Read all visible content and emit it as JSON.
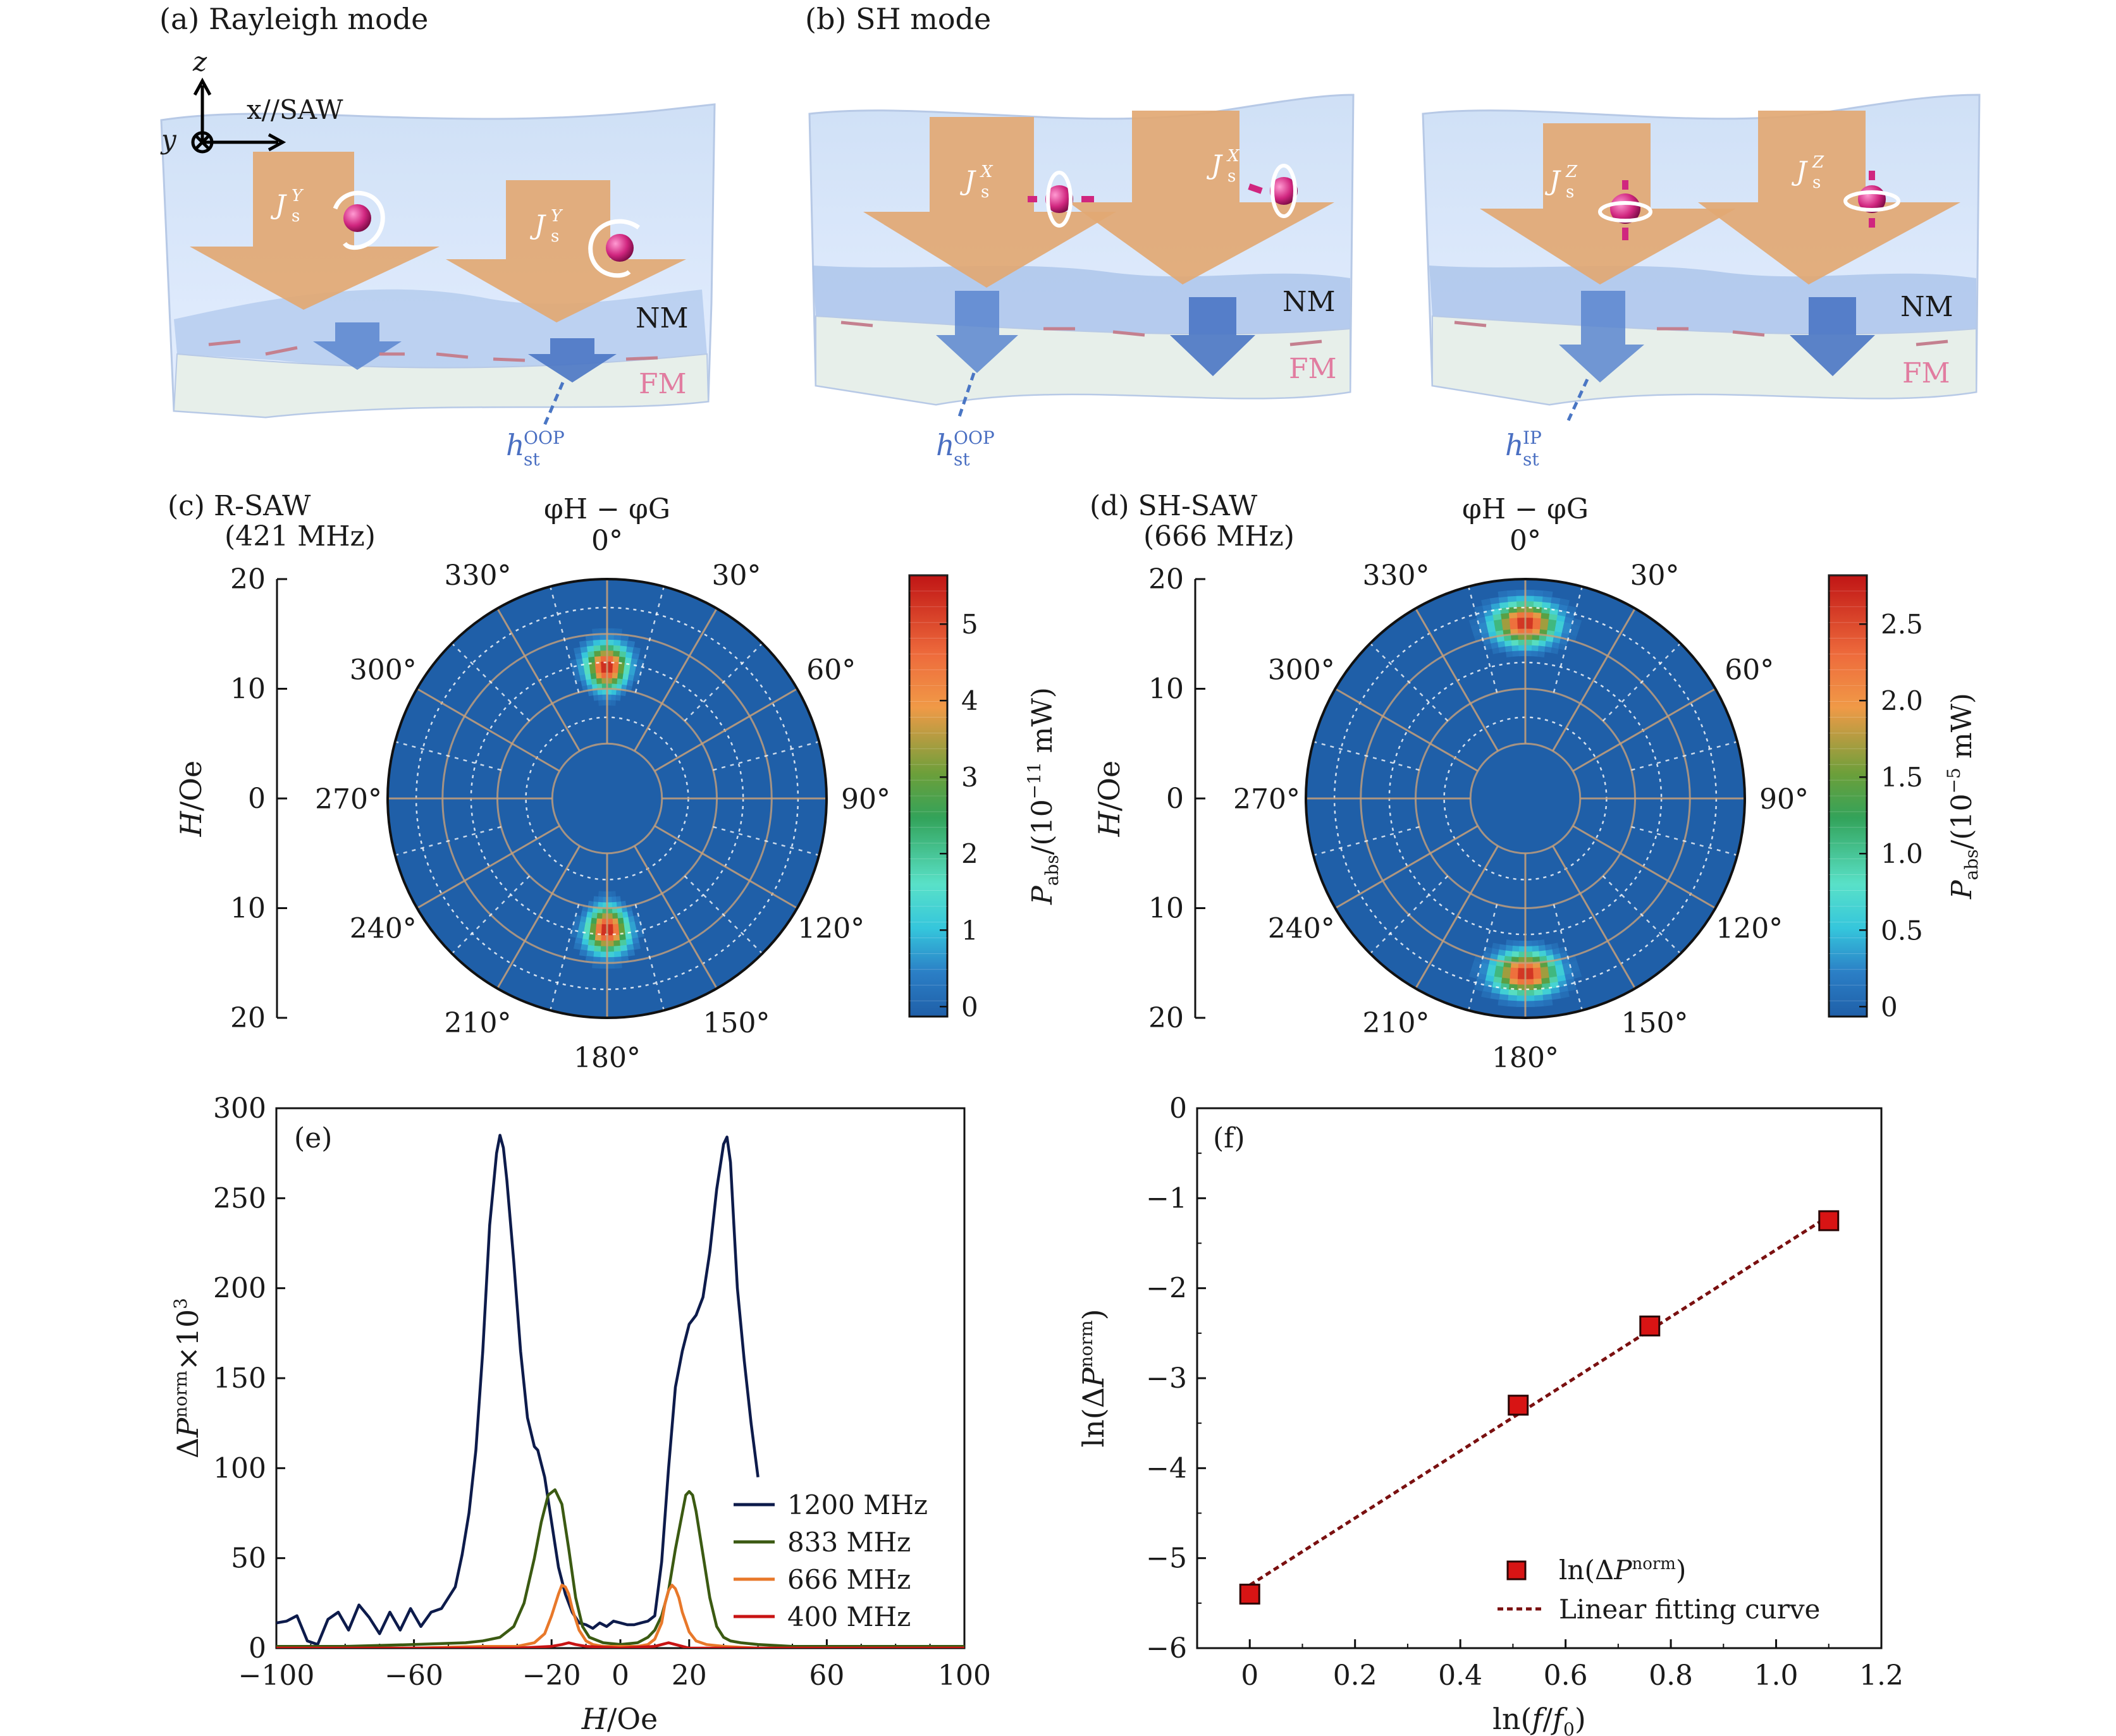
{
  "panels": {
    "a": {
      "label": "(a) Rayleigh mode",
      "axis_z": "z",
      "axis_x": "x//SAW",
      "axis_y": "y",
      "arrow_left": "J",
      "arrow_left_sub": "s",
      "arrow_left_sup": "Y",
      "arrow_right": "J",
      "arrow_right_sub": "s",
      "arrow_right_sup": "Y",
      "nm": "NM",
      "fm": "FM",
      "field": "h",
      "field_sub": "st",
      "field_sup": "OOP"
    },
    "b": {
      "label": "(b) SH mode",
      "left": {
        "j1": "J",
        "j1_sub": "s",
        "j1_sup": "X",
        "j2": "J",
        "j2_sub": "s",
        "j2_sup": "X",
        "nm": "NM",
        "fm": "FM",
        "field": "h",
        "field_sub": "st",
        "field_sup": "OOP"
      },
      "right": {
        "j1": "J",
        "j1_sub": "s",
        "j1_sup": "Z",
        "j2": "J",
        "j2_sub": "s",
        "j2_sup": "Z",
        "nm": "NM",
        "fm": "FM",
        "field": "h",
        "field_sub": "st",
        "field_sup": "IP"
      }
    },
    "c": {
      "label": "(c) R-SAW",
      "freq": "(421 MHz)",
      "angle_title": "φH − φG",
      "cb_label": "Pabs/(10−11 mW)",
      "cb_ticks": [
        "0",
        "1",
        "2",
        "3",
        "4",
        "5"
      ],
      "cb_max": 5.6
    },
    "d": {
      "label": "(d) SH-SAW",
      "freq": "(666 MHz)",
      "angle_title": "φH − φG",
      "cb_label": "Pabs/(10−5 mW)",
      "cb_ticks": [
        "0",
        "0.5",
        "1.0",
        "1.5",
        "2.0",
        "2.5"
      ],
      "cb_max": 2.8
    },
    "e": {
      "label": "(e)"
    },
    "f": {
      "label": "(f)"
    }
  },
  "polar_common": {
    "radial_label": "H/Oe",
    "radial_ticks": [
      "20",
      "10",
      "0",
      "10",
      "20"
    ],
    "angle_labels": [
      "0°",
      "30°",
      "60°",
      "90°",
      "120°",
      "150°",
      "180°",
      "210°",
      "240°",
      "270°",
      "300°",
      "330°"
    ]
  },
  "chart_data": [
    {
      "type": "heatmap",
      "panel": "c",
      "subtype": "polar",
      "r_range": [
        0,
        20
      ],
      "theta_unit": "deg",
      "value_range": [
        0,
        5.6
      ],
      "hotspots": [
        {
          "theta": 0,
          "r": 12,
          "peak": 5.5,
          "theta_width": 14,
          "r_width": 3.2
        },
        {
          "theta": 180,
          "r": 12,
          "peak": 5.5,
          "theta_width": 14,
          "r_width": 3.2
        }
      ]
    },
    {
      "type": "heatmap",
      "panel": "d",
      "subtype": "polar",
      "r_range": [
        0,
        20
      ],
      "theta_unit": "deg",
      "value_range": [
        0,
        2.8
      ],
      "hotspots": [
        {
          "theta": 0,
          "r": 16,
          "peak": 2.7,
          "theta_width": 16,
          "r_width": 3.0
        },
        {
          "theta": 180,
          "r": 16,
          "peak": 2.7,
          "theta_width": 16,
          "r_width": 3.0
        }
      ]
    },
    {
      "type": "line",
      "panel": "e",
      "xlabel": "H/Oe",
      "ylabel": "ΔPnorm×103",
      "xlim": [
        -100,
        100
      ],
      "ylim": [
        0,
        300
      ],
      "xticks": [
        -100,
        -60,
        -20,
        0,
        20,
        60,
        100
      ],
      "xtick_labels": [
        "−100",
        "−60",
        "−20",
        "0",
        "20",
        "60",
        "100"
      ],
      "yticks": [
        0,
        50,
        100,
        150,
        200,
        250,
        300
      ],
      "legend_position": "lower-right",
      "series": [
        {
          "name": "1200 MHz",
          "color": "#0d1b4b",
          "x": [
            -100,
            -97,
            -94,
            -91,
            -88,
            -85,
            -82,
            -79,
            -76,
            -73,
            -70,
            -67,
            -64,
            -61,
            -58,
            -55,
            -52,
            -50,
            -48,
            -46,
            -44,
            -42,
            -40,
            -38,
            -36,
            -35,
            -34,
            -33,
            -31,
            -29,
            -27,
            -25,
            -24,
            -22,
            -20,
            -18,
            -16,
            -14,
            -12,
            -10,
            -8,
            -6,
            -4,
            -2,
            0,
            2,
            4,
            6,
            8,
            10,
            12,
            14,
            16,
            18,
            20,
            22,
            24,
            26,
            28,
            30,
            31,
            32,
            33,
            34,
            36,
            38,
            40
          ],
          "y": [
            14,
            15,
            18,
            4,
            2,
            16,
            20,
            10,
            24,
            17,
            8,
            20,
            10,
            22,
            12,
            20,
            22,
            28,
            34,
            52,
            75,
            110,
            165,
            235,
            275,
            285,
            278,
            260,
            215,
            165,
            128,
            112,
            110,
            95,
            70,
            45,
            30,
            20,
            14,
            13,
            11,
            14,
            12,
            15,
            14,
            13,
            13,
            14,
            15,
            18,
            48,
            100,
            145,
            165,
            180,
            185,
            195,
            220,
            255,
            280,
            284,
            270,
            235,
            200,
            160,
            125,
            95
          ]
        },
        {
          "name": "833 MHz",
          "color": "#3b5a12",
          "x": [
            -100,
            -80,
            -60,
            -45,
            -40,
            -35,
            -31,
            -28,
            -25,
            -23,
            -21,
            -19,
            -17,
            -15,
            -13,
            -11,
            -9,
            -5,
            0,
            5,
            8,
            10,
            12,
            14,
            16,
            18,
            19,
            20,
            21,
            22,
            24,
            26,
            28,
            30,
            32,
            35,
            40,
            50,
            60,
            80,
            100
          ],
          "y": [
            1,
            1,
            2,
            3,
            4,
            6,
            12,
            25,
            50,
            70,
            85,
            88,
            80,
            55,
            28,
            12,
            6,
            3,
            2,
            3,
            6,
            10,
            18,
            32,
            55,
            75,
            85,
            87,
            85,
            76,
            52,
            28,
            12,
            6,
            4,
            3,
            2,
            1,
            1,
            1,
            1
          ]
        },
        {
          "name": "666 MHz",
          "color": "#e8782a",
          "x": [
            -100,
            -60,
            -40,
            -30,
            -25,
            -22,
            -20,
            -18,
            -17,
            -16,
            -15,
            -14,
            -12,
            -10,
            -8,
            -5,
            0,
            5,
            8,
            10,
            12,
            13,
            14,
            15,
            16,
            17,
            18,
            20,
            22,
            25,
            30,
            40,
            60,
            100
          ],
          "y": [
            0,
            0,
            1,
            1,
            3,
            8,
            18,
            30,
            35,
            34,
            30,
            22,
            10,
            4,
            2,
            1,
            1,
            1,
            2,
            5,
            14,
            25,
            32,
            35,
            33,
            28,
            20,
            9,
            4,
            2,
            1,
            0,
            0,
            0
          ]
        },
        {
          "name": "400 MHz",
          "color": "#c81414",
          "x": [
            -100,
            -30,
            -20,
            -17,
            -15,
            -13,
            -10,
            0,
            10,
            12,
            14,
            16,
            18,
            20,
            30,
            100
          ],
          "y": [
            0,
            0,
            1,
            2,
            3,
            2,
            1,
            0,
            1,
            2,
            3,
            2,
            1,
            0,
            0,
            0
          ]
        }
      ]
    },
    {
      "type": "scatter",
      "panel": "f",
      "xlabel": "ln(f/f0)",
      "ylabel": "ln(ΔPnorm)",
      "xlim": [
        -0.1,
        1.2
      ],
      "ylim": [
        -6,
        0
      ],
      "xticks": [
        0,
        0.2,
        0.4,
        0.6,
        0.8,
        1.0,
        1.2
      ],
      "xtick_labels": [
        "0",
        "0.2",
        "0.4",
        "0.6",
        "0.8",
        "1.0",
        "1.2"
      ],
      "yticks": [
        0,
        -1,
        -2,
        -3,
        -4,
        -5,
        -6
      ],
      "ytick_labels": [
        "0",
        "−1",
        "−2",
        "−3",
        "−4",
        "−5",
        "−6"
      ],
      "series": [
        {
          "name": "ln(ΔPnorm)",
          "color": "#d81414",
          "x": [
            0.0,
            0.51,
            0.76,
            1.1
          ],
          "y": [
            -5.4,
            -3.3,
            -2.42,
            -1.25
          ]
        }
      ],
      "fit": {
        "name": "Linear fitting curve",
        "color": "#7a1010",
        "x": [
          0.0,
          1.1
        ],
        "y": [
          -5.3,
          -1.2
        ]
      },
      "legend_position": "lower-right"
    }
  ]
}
